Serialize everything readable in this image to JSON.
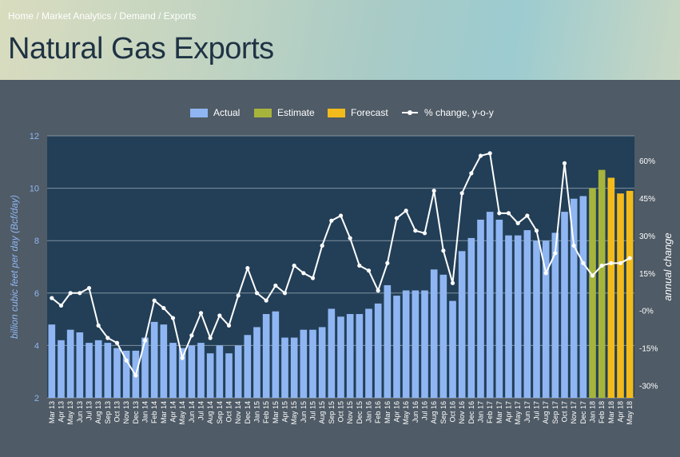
{
  "breadcrumb": {
    "items": [
      "Home",
      "Market Analytics",
      "Demand",
      "Exports"
    ],
    "separator": " / "
  },
  "page_title": "Natural Gas Exports",
  "colors": {
    "actual": "#8fb6f2",
    "estimate": "#a7b43c",
    "forecast": "#f2bb1b",
    "line": "#ffffff",
    "plot_bg": "#233f57",
    "axis_label_left": "#8fb6f2"
  },
  "chart_data": {
    "type": "bar",
    "legend": {
      "position": "top-center",
      "entries": [
        {
          "key": "actual",
          "label": "Actual"
        },
        {
          "key": "estimate",
          "label": "Estimate"
        },
        {
          "key": "forecast",
          "label": "Forecast"
        },
        {
          "key": "line",
          "label": "% change, y-o-y"
        }
      ]
    },
    "ylabel": "billion cubic feet per day (Bcf/day)",
    "y2label": "annual change",
    "ylim": [
      2,
      12
    ],
    "yticks": [
      2,
      4,
      6,
      8,
      10,
      12
    ],
    "y2lim": [
      -35,
      70
    ],
    "y2ticks": [
      -30,
      -15,
      0,
      15,
      30,
      45,
      60
    ],
    "y2tick_labels": [
      "-30%",
      "-15%",
      "-0%",
      "15%",
      "30%",
      "45%",
      "60%"
    ],
    "grid": true,
    "categories": [
      "Mar 13",
      "Apr 13",
      "May 13",
      "Jun 13",
      "Jul 13",
      "Aug 13",
      "Sep 13",
      "Oct 13",
      "Nov 13",
      "Dec 13",
      "Jan 14",
      "Feb 14",
      "Mar 14",
      "Apr 14",
      "May 14",
      "Jun 14",
      "Jul 14",
      "Aug 14",
      "Sep 14",
      "Oct 14",
      "Nov 14",
      "Dec 14",
      "Jan 15",
      "Feb 15",
      "Mar 15",
      "Apr 15",
      "May 15",
      "Jun 15",
      "Jul 15",
      "Aug 15",
      "Sep 15",
      "Oct 15",
      "Nov 15",
      "Dec 15",
      "Jan 16",
      "Feb 16",
      "Mar 16",
      "Apr 16",
      "May 16",
      "Jun 16",
      "Jul 16",
      "Aug 16",
      "Sep 16",
      "Oct 16",
      "Nov 16",
      "Dec 16",
      "Jan 17",
      "Feb 17",
      "Mar 17",
      "Apr 17",
      "May 17",
      "Jun 17",
      "Jul 17",
      "Aug 17",
      "Sep 17",
      "Oct 17",
      "Nov 17",
      "Dec 17",
      "Jan 18",
      "Feb 18",
      "Mar 18",
      "Apr 18",
      "May 18"
    ],
    "series": [
      {
        "key": "bars",
        "values": [
          4.8,
          4.2,
          4.6,
          4.5,
          4.1,
          4.2,
          4.1,
          3.9,
          3.8,
          3.8,
          4.3,
          4.9,
          4.8,
          4.1,
          3.9,
          4.0,
          4.1,
          3.7,
          4.0,
          3.7,
          4.0,
          4.4,
          4.7,
          5.2,
          5.3,
          4.3,
          4.3,
          4.6,
          4.6,
          4.7,
          5.4,
          5.1,
          5.2,
          5.2,
          5.4,
          5.6,
          6.3,
          5.9,
          6.1,
          6.1,
          6.1,
          6.9,
          6.7,
          5.7,
          7.6,
          8.1,
          8.8,
          9.1,
          8.8,
          8.2,
          8.2,
          8.4,
          8.0,
          8.0,
          8.3,
          9.1,
          9.6,
          9.7,
          10.0,
          10.7,
          10.4,
          9.8,
          9.9
        ],
        "status": [
          "actual",
          "actual",
          "actual",
          "actual",
          "actual",
          "actual",
          "actual",
          "actual",
          "actual",
          "actual",
          "actual",
          "actual",
          "actual",
          "actual",
          "actual",
          "actual",
          "actual",
          "actual",
          "actual",
          "actual",
          "actual",
          "actual",
          "actual",
          "actual",
          "actual",
          "actual",
          "actual",
          "actual",
          "actual",
          "actual",
          "actual",
          "actual",
          "actual",
          "actual",
          "actual",
          "actual",
          "actual",
          "actual",
          "actual",
          "actual",
          "actual",
          "actual",
          "actual",
          "actual",
          "actual",
          "actual",
          "actual",
          "actual",
          "actual",
          "actual",
          "actual",
          "actual",
          "actual",
          "actual",
          "actual",
          "actual",
          "actual",
          "actual",
          "estimate",
          "estimate",
          "forecast",
          "forecast",
          "forecast"
        ]
      },
      {
        "key": "line",
        "values": [
          5,
          2,
          7,
          7,
          9,
          -6,
          -11,
          -13,
          -20,
          -26,
          -12,
          4,
          1,
          -3,
          -19,
          -10,
          -1,
          -11,
          -2,
          -6,
          6,
          17,
          7,
          4,
          10,
          7,
          18,
          15,
          13,
          26,
          36,
          38,
          29,
          18,
          16,
          8,
          19,
          37,
          40,
          32,
          31,
          48,
          24,
          11,
          47,
          55,
          62,
          63,
          39,
          39,
          35,
          38,
          32,
          15,
          23,
          59,
          26,
          19,
          14,
          18,
          19,
          19,
          21
        ]
      }
    ]
  }
}
